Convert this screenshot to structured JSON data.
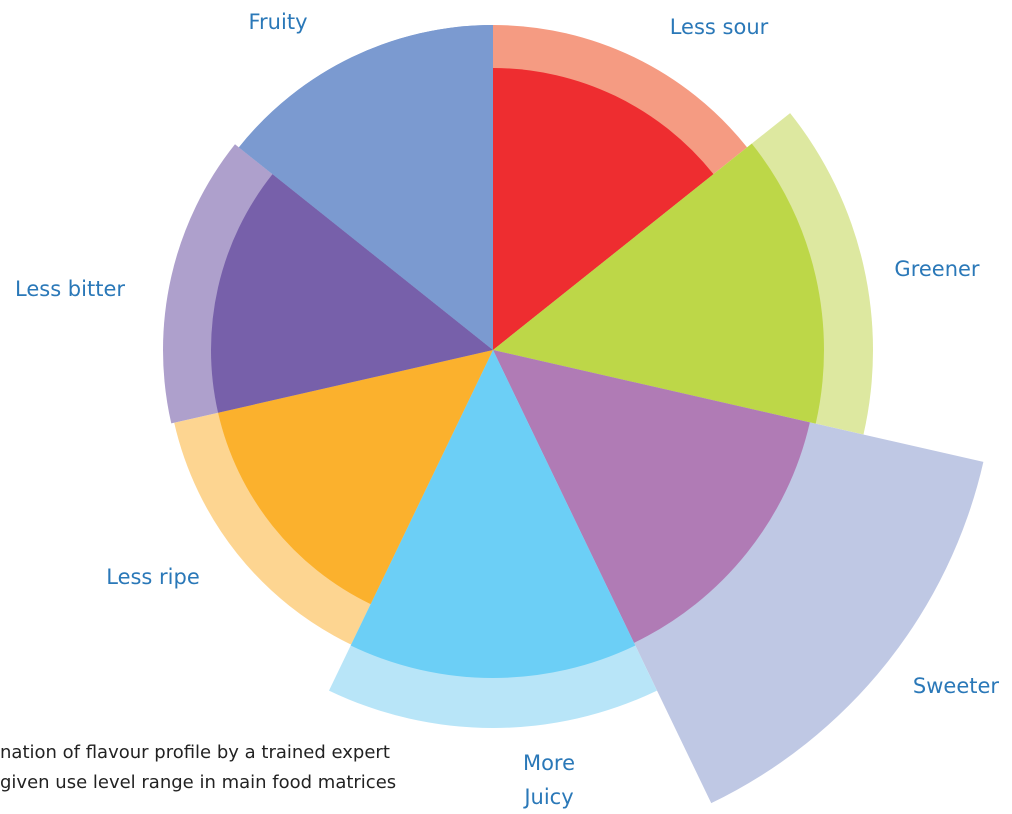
{
  "chart_data": {
    "type": "rose",
    "categories": [
      "Less sour",
      "Greener",
      "Sweeter",
      "More Juicy",
      "Less ripe",
      "Less bitter",
      "Fruity"
    ],
    "inner_values": [
      282,
      331,
      325,
      328,
      282,
      282,
      325
    ],
    "outer_values": [
      325,
      380,
      503,
      378,
      327,
      330,
      325
    ],
    "inner_colors": [
      "#ee2d30",
      "#bdd748",
      "#b07bb5",
      "#6ccff6",
      "#fbb12d",
      "#7760aa",
      "#7b9ad0"
    ],
    "outer_colors": [
      "#f59b82",
      "#dde8a0",
      "#bfc8e4",
      "#b8e5f8",
      "#fdd591",
      "#aea0cc",
      "#7b9ad0"
    ],
    "notes": [
      "nation of flavour profile by a trained expert",
      "given use level range in main food matrices"
    ]
  }
}
